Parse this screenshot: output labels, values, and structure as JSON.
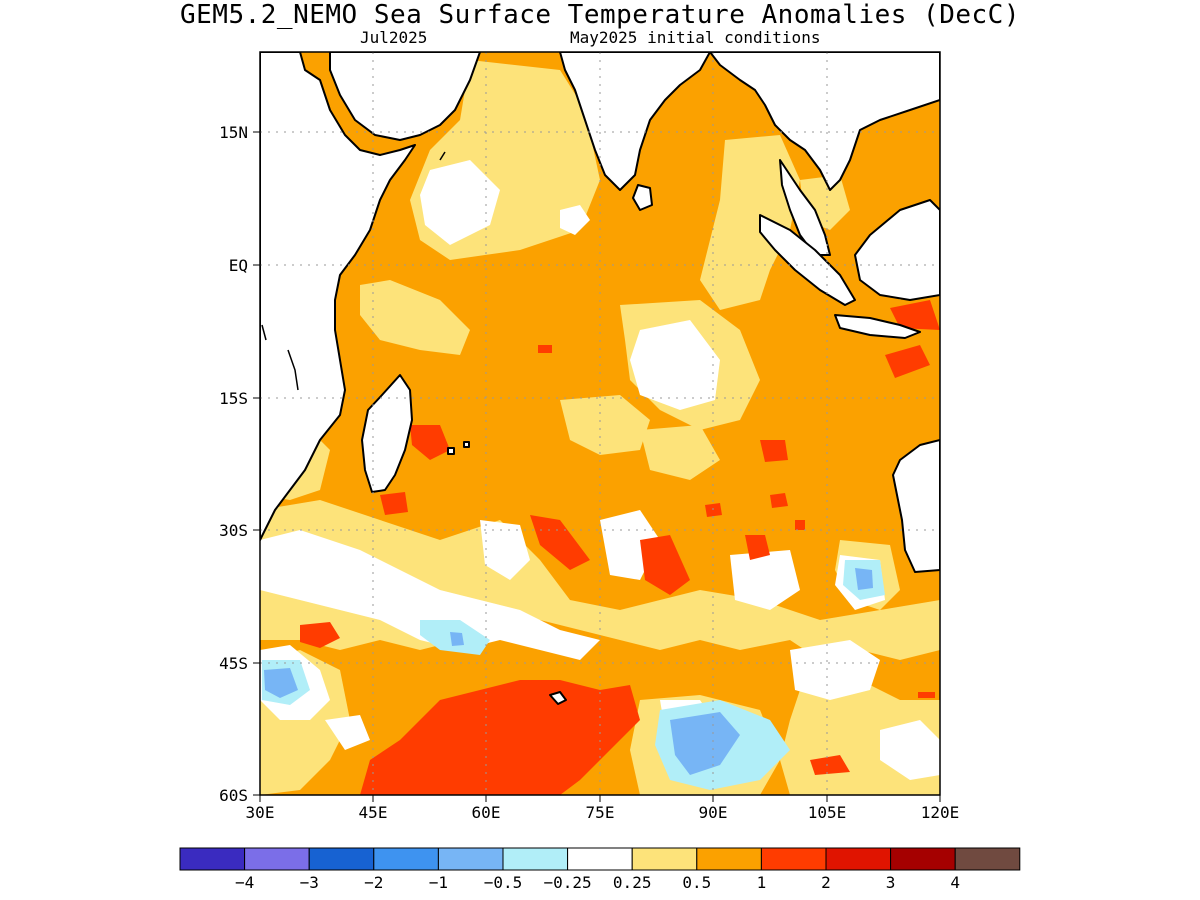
{
  "title": "GEM5.2_NEMO Sea Surface Temperature Anomalies (DecC)",
  "subtitle_left": "Jul2025",
  "subtitle_right": "May2025 initial conditions",
  "y_ticks": [
    "15N",
    "EQ",
    "15S",
    "30S",
    "45S",
    "60S"
  ],
  "x_ticks": [
    "30E",
    "45E",
    "60E",
    "75E",
    "90E",
    "105E",
    "120E"
  ],
  "legend": {
    "labels": [
      "−4",
      "−3",
      "−2",
      "−1",
      "−0.5",
      "−0.25",
      "0.25",
      "0.5",
      "1",
      "2",
      "3",
      "4"
    ],
    "colors": [
      "#3a2bc0",
      "#7b6ee8",
      "#1762d2",
      "#3e93f0",
      "#77b5f5",
      "#b1eef8",
      "#ffffff",
      "#fde37a",
      "#fba100",
      "#ff3c00",
      "#e01400",
      "#a50000",
      "#704a40"
    ]
  },
  "colors": {
    "pale_yellow": "#fde37a",
    "orange": "#fba100",
    "red_orange": "#ff3c00",
    "light_blue": "#77b5f5",
    "cyan_light": "#b1eef8",
    "white": "#ffffff"
  }
}
